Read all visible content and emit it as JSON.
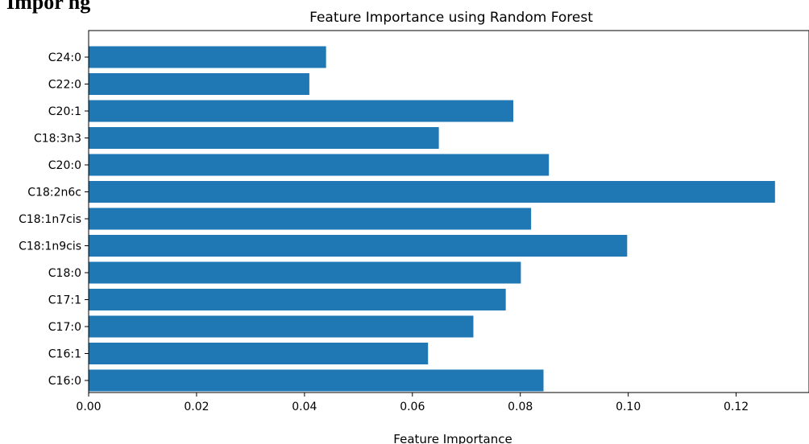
{
  "page": {
    "heading_fragment": "Impor   ng"
  },
  "chart_data": {
    "type": "bar",
    "orientation": "horizontal",
    "title": "Feature Importance using Random Forest",
    "xlabel": "Feature Importance",
    "ylabel": "",
    "xlim": [
      0,
      0.1335
    ],
    "xticks": [
      0.0,
      0.02,
      0.04,
      0.06,
      0.08,
      0.1,
      0.12
    ],
    "xtick_labels": [
      "0.00",
      "0.02",
      "0.04",
      "0.06",
      "0.08",
      "0.10",
      "0.12"
    ],
    "categories": [
      "C16:0",
      "C16:1",
      "C17:0",
      "C17:1",
      "C18:0",
      "C18:1n9cis",
      "C18:1n7cis",
      "C18:2n6c",
      "C20:0",
      "C18:3n3",
      "C20:1",
      "C22:0",
      "C24:0"
    ],
    "values": [
      0.0843,
      0.0629,
      0.0713,
      0.0773,
      0.0801,
      0.0998,
      0.082,
      0.1272,
      0.0853,
      0.0649,
      0.0787,
      0.0409,
      0.044
    ],
    "bar_color": "#1f77b4",
    "grid": false,
    "legend": "none"
  }
}
